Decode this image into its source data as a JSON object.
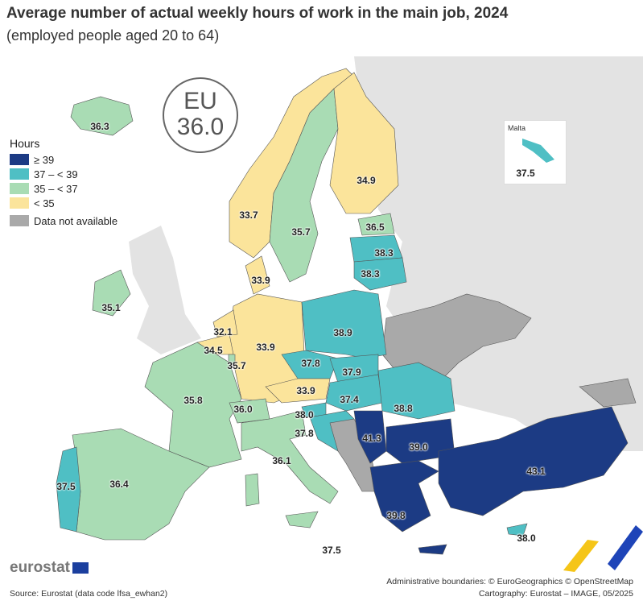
{
  "title": "Average number of actual weekly hours of work in the main job, 2024",
  "subtitle": "(employed people aged 20 to 64)",
  "eu": {
    "label": "EU",
    "value": "36.0"
  },
  "legend": {
    "title": "Hours",
    "classes": [
      {
        "label": "≥ 39",
        "color": "#1c3b84"
      },
      {
        "label": "37 – < 39",
        "color": "#4fbfc4"
      },
      {
        "label": "35 – < 37",
        "color": "#a9dcb4"
      },
      {
        "label": "< 35",
        "color": "#fbe49b"
      }
    ],
    "na": {
      "label": "Data not available",
      "color": "#a9a9a9"
    }
  },
  "inset": {
    "title": "Malta",
    "value": "37.5"
  },
  "values": {
    "IS": "36.3",
    "NO": "33.7",
    "SE": "35.7",
    "FI": "34.9",
    "EE": "36.5",
    "LV": "38.3",
    "LT": "38.3",
    "DK": "33.9",
    "IE": "35.1",
    "NL": "32.1",
    "BE": "34.5",
    "LU": "35.7",
    "DE": "33.9",
    "PL": "38.9",
    "CZ": "37.8",
    "SK": "37.9",
    "AT": "33.9",
    "HU": "37.4",
    "RO": "38.8",
    "FR": "35.8",
    "CH": "36.0",
    "SI": "38.0",
    "HR": "37.8",
    "RS": "41.3",
    "BG": "39.0",
    "TR": "43.1",
    "PT": "37.5",
    "ES": "36.4",
    "IT": "36.1",
    "EL": "39.8",
    "CY": "38.0",
    "MT": "37.5"
  },
  "logo": "eurostat",
  "source": "Source: Eurostat (data code lfsa_ewhan2)",
  "credits": [
    "Administrative boundaries: © EuroGeographics © OpenStreetMap",
    "Cartography: Eurostat – IMAGE, 05/2025"
  ]
}
